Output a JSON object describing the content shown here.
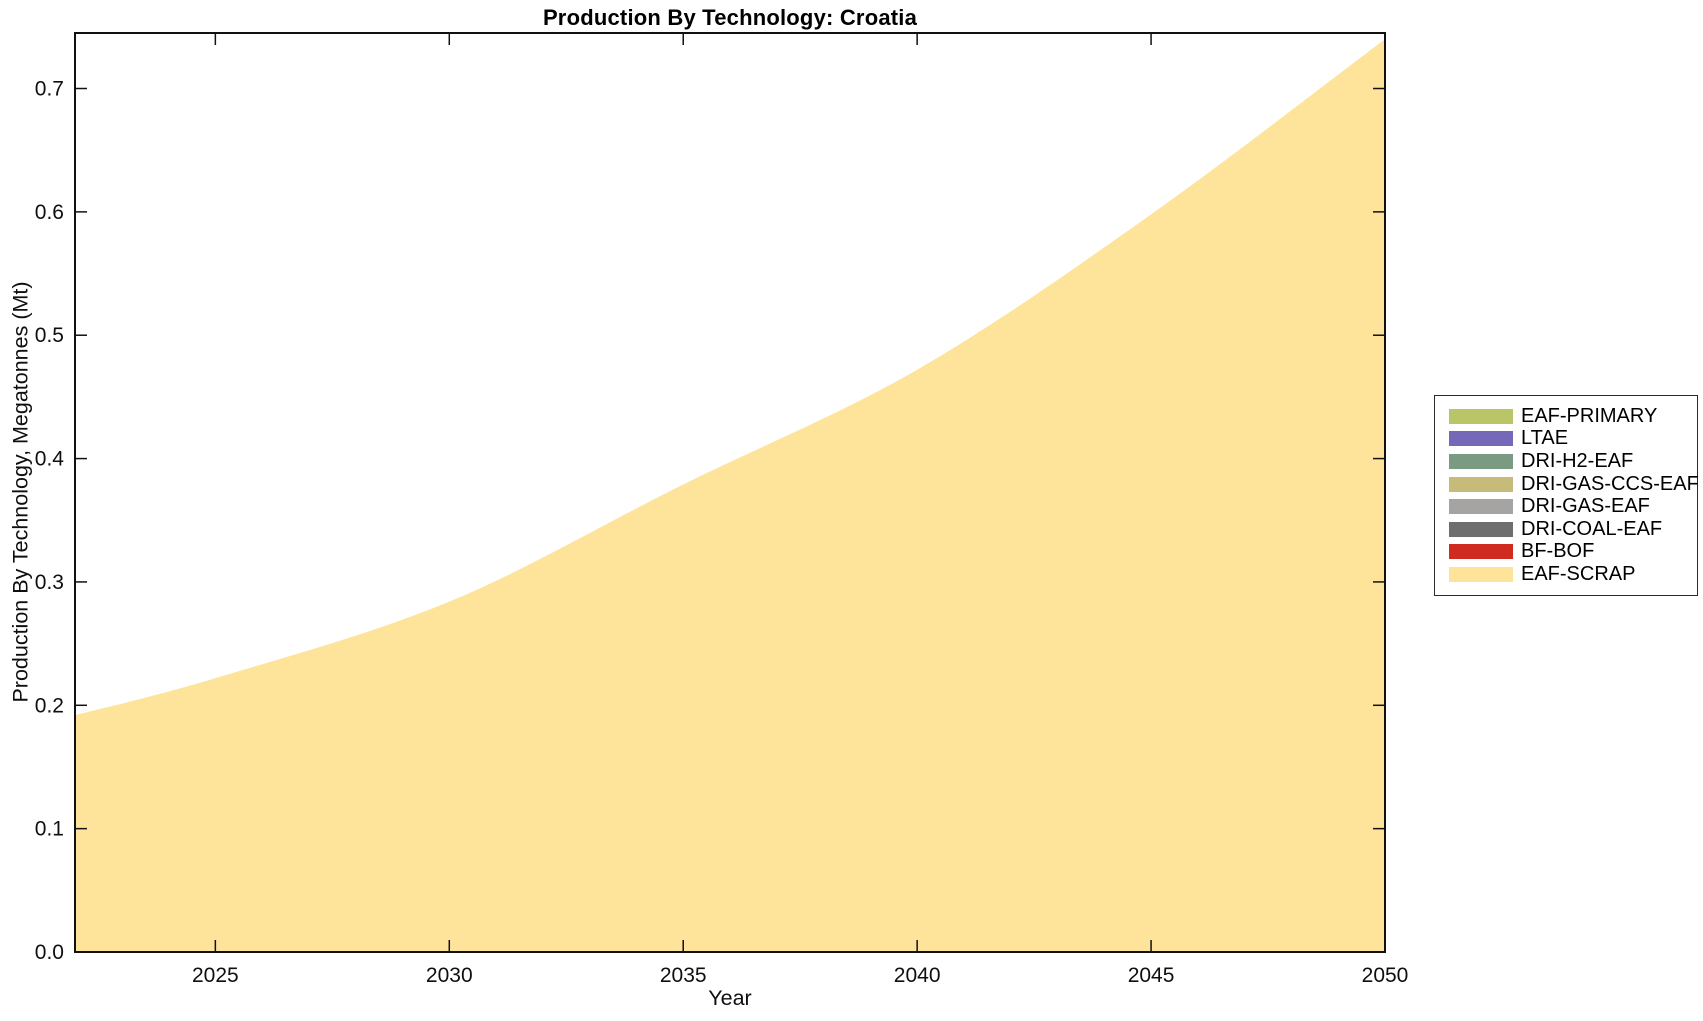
{
  "chart_data": {
    "type": "area",
    "title": "Production By Technology: Croatia",
    "xlabel": "Year",
    "ylabel": "Production By Technology, Megatonnes (Mt)",
    "x": [
      2022,
      2025,
      2030,
      2035,
      2040,
      2045,
      2050
    ],
    "xlim": [
      2022,
      2050
    ],
    "ylim": [
      0,
      0.745
    ],
    "xticks": [
      2025,
      2030,
      2035,
      2040,
      2045,
      2050
    ],
    "yticks": [
      0.0,
      0.1,
      0.2,
      0.3,
      0.4,
      0.5,
      0.6,
      0.7
    ],
    "ytick_labels": [
      "0.0",
      "0.1",
      "0.2",
      "0.3",
      "0.4",
      "0.5",
      "0.6",
      "0.7"
    ],
    "grid": false,
    "legend_position": "right-outside",
    "axes_color": "#111111",
    "background_color": "#ffffff",
    "series": [
      {
        "name": "EAF-PRIMARY",
        "color": "#b9c566",
        "values": [
          0,
          0,
          0,
          0,
          0,
          0,
          0
        ]
      },
      {
        "name": "LTAE",
        "color": "#7568b8",
        "values": [
          0,
          0,
          0,
          0,
          0,
          0,
          0
        ]
      },
      {
        "name": "DRI-H2-EAF",
        "color": "#7a9a84",
        "values": [
          0,
          0,
          0,
          0,
          0,
          0,
          0
        ]
      },
      {
        "name": "DRI-GAS-CCS-EAF",
        "color": "#c6bb7a",
        "values": [
          0,
          0,
          0,
          0,
          0,
          0,
          0
        ]
      },
      {
        "name": "DRI-GAS-EAF",
        "color": "#a5a4a2",
        "values": [
          0,
          0,
          0,
          0,
          0,
          0,
          0
        ]
      },
      {
        "name": "DRI-COAL-EAF",
        "color": "#6f6e6e",
        "values": [
          0,
          0,
          0,
          0,
          0,
          0,
          0
        ]
      },
      {
        "name": "BF-BOF",
        "color": "#d02b21",
        "values": [
          0,
          0,
          0,
          0,
          0,
          0,
          0
        ]
      },
      {
        "name": "EAF-SCRAP",
        "color": "#fde49a",
        "values": [
          0.192,
          0.222,
          0.284,
          0.379,
          0.472,
          0.598,
          0.74
        ]
      }
    ]
  }
}
